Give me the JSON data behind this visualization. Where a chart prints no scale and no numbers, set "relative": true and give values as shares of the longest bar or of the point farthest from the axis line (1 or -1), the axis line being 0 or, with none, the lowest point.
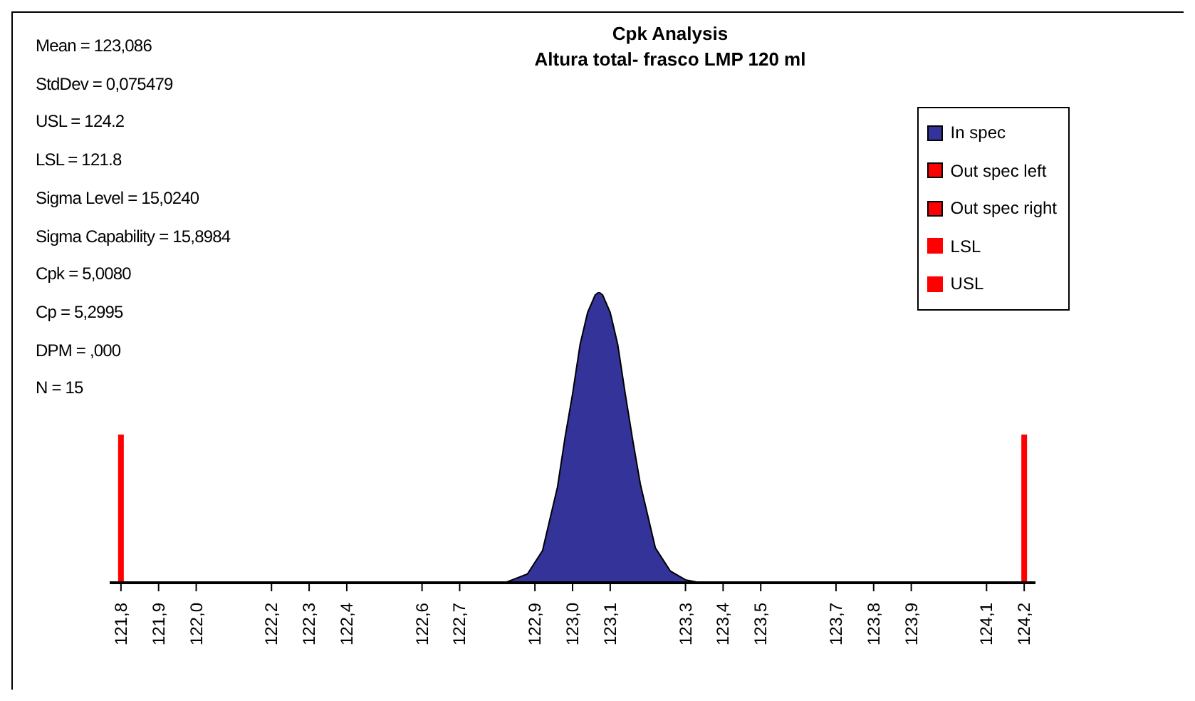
{
  "chart_data": {
    "type": "area",
    "title": "Cpk Analysis",
    "subtitle": "Altura total- frasco LMP 120 ml",
    "relative": true,
    "annotations": [
      "Mean = 123,086",
      "StdDev = 0,075479",
      "USL =  124.2",
      "LSL =  121.8",
      "Sigma Level = 15,0240",
      "Sigma Capability = 15,8984",
      "Cpk = 5,0080",
      "Cp = 5,2995",
      "DPM = ,000",
      "N = 15"
    ],
    "xlim": [
      121.77,
      124.23
    ],
    "xticks": [
      {
        "value": 121.8,
        "label": "121,8"
      },
      {
        "value": 121.9,
        "label": "121,9"
      },
      {
        "value": 122.0,
        "label": "122,0"
      },
      {
        "value": 122.2,
        "label": "122,2"
      },
      {
        "value": 122.3,
        "label": "122,3"
      },
      {
        "value": 122.4,
        "label": "122,4"
      },
      {
        "value": 122.6,
        "label": "122,6"
      },
      {
        "value": 122.7,
        "label": "122,7"
      },
      {
        "value": 122.9,
        "label": "122,9"
      },
      {
        "value": 123.0,
        "label": "123,0"
      },
      {
        "value": 123.1,
        "label": "123,1"
      },
      {
        "value": 123.3,
        "label": "123,3"
      },
      {
        "value": 123.4,
        "label": "123,4"
      },
      {
        "value": 123.5,
        "label": "123,5"
      },
      {
        "value": 123.7,
        "label": "123,7"
      },
      {
        "value": 123.8,
        "label": "123,8"
      },
      {
        "value": 123.9,
        "label": "123,9"
      },
      {
        "value": 124.1,
        "label": "124,1"
      },
      {
        "value": 124.2,
        "label": "124,2"
      }
    ],
    "legend": "top right",
    "grid": false,
    "series": [
      {
        "name": "In spec",
        "color": "#333399",
        "x": [
          122.82,
          122.84,
          122.88,
          122.92,
          122.96,
          122.98,
          123.0,
          123.02,
          123.04,
          123.06,
          123.07,
          123.08,
          123.1,
          123.12,
          123.14,
          123.16,
          123.18,
          123.22,
          123.26,
          123.3,
          123.34
        ],
        "values": [
          0,
          0.01,
          0.03,
          0.11,
          0.33,
          0.5,
          0.65,
          0.82,
          0.93,
          0.99,
          1,
          0.99,
          0.93,
          0.82,
          0.65,
          0.49,
          0.34,
          0.12,
          0.04,
          0.01,
          0
        ]
      },
      {
        "name": "Out spec left",
        "type": "area",
        "color": "#ff0000"
      },
      {
        "name": "Out spec right",
        "type": "area",
        "color": "#ff0000"
      },
      {
        "name": "LSL",
        "type": "line",
        "color": "#ff0000",
        "x": [
          121.8,
          121.8
        ],
        "values": [
          0,
          0.51
        ]
      },
      {
        "name": "USL",
        "type": "line",
        "color": "#ff0000",
        "x": [
          124.2,
          124.2
        ],
        "values": [
          0,
          0.51
        ]
      }
    ]
  }
}
